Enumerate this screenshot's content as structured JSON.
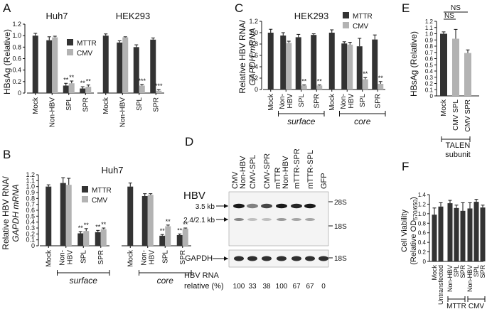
{
  "colors": {
    "mttr": "#333333",
    "cmv": "#b3b3b3",
    "blot_bg": "#f4f4f4",
    "band": "#1a1a1a"
  },
  "chart_data": [
    {
      "panel": "A",
      "type": "bar",
      "ylabel": "HBsAg (Relative)",
      "ylim": [
        0,
        1.2
      ],
      "yticks": [
        0,
        0.2,
        0.4,
        0.6,
        0.8,
        1.0,
        1.2
      ],
      "ytick_labels": [
        "0",
        "0.2",
        "0.4",
        "0.6",
        "0.8",
        "1.0",
        "1.2"
      ],
      "legend": [
        "MTTR",
        "CMV"
      ],
      "groups": [
        {
          "title": "Huh7",
          "categories": [
            "Mock",
            "Non-HBV",
            "SPL",
            "SPR"
          ],
          "values": [
            [
              1.0,
              null
            ],
            [
              0.92,
              0.97
            ],
            [
              0.13,
              0.17
            ],
            [
              0.08,
              0.11
            ]
          ],
          "errors": [
            [
              0.04,
              null
            ],
            [
              0.06,
              0.02
            ],
            [
              0.04,
              0.04
            ],
            [
              0.03,
              0.03
            ]
          ],
          "sig": [
            [
              "",
              ""
            ],
            [
              "",
              ""
            ],
            [
              "**",
              "**"
            ],
            [
              "**",
              "**"
            ]
          ]
        },
        {
          "title": "HEK293",
          "categories": [
            "Mock",
            "Non-HBV",
            "SPL",
            "SPR"
          ],
          "values": [
            [
              1.0,
              null
            ],
            [
              0.88,
              0.97
            ],
            [
              0.8,
              0.13
            ],
            [
              0.93,
              0.04
            ]
          ],
          "errors": [
            [
              0.03,
              null
            ],
            [
              0.03,
              0.01
            ],
            [
              0.04,
              0.02
            ],
            [
              0.03,
              0.02
            ]
          ],
          "sig": [
            [
              "",
              ""
            ],
            [
              "",
              ""
            ],
            [
              "",
              "***"
            ],
            [
              "",
              "***"
            ]
          ]
        }
      ]
    },
    {
      "panel": "B",
      "type": "bar",
      "ylabel_lines": [
        "Relative HBV RNA/",
        "GAPDH mRNA"
      ],
      "title": "Huh7",
      "ylim": [
        0,
        1.2
      ],
      "yticks": [
        0,
        0.1,
        0.2,
        0.3,
        0.4,
        0.5,
        0.6,
        0.7,
        0.8,
        0.9,
        1.0,
        1.1,
        1.2
      ],
      "ytick_labels": [
        "0",
        "0.1",
        "0.2",
        "0.3",
        "0.4",
        "0.5",
        "0.6",
        "0.7",
        "0.8",
        "0.9",
        "1.0",
        "1.1",
        "1.2"
      ],
      "legend": [
        "MTTR",
        "CMV"
      ],
      "groups": [
        {
          "label": "surface",
          "categories": [
            "Mock",
            "Non-HBV",
            "SPL",
            "SPR"
          ],
          "category_lines": [
            [
              "Mock"
            ],
            [
              "Non-",
              "HBV"
            ],
            [
              "SPL"
            ],
            [
              "SPR"
            ]
          ],
          "values": [
            [
              1.0,
              null
            ],
            [
              1.06,
              1.03
            ],
            [
              0.21,
              0.25
            ],
            [
              0.23,
              0.28
            ]
          ],
          "errors": [
            [
              0.03,
              null
            ],
            [
              0.09,
              0.11
            ],
            [
              0.03,
              0.04
            ],
            [
              0.03,
              0.02
            ]
          ],
          "sig": [
            [
              "",
              ""
            ],
            [
              "",
              ""
            ],
            [
              "**",
              "**"
            ],
            [
              "**",
              "**"
            ]
          ]
        },
        {
          "label": "core",
          "categories": [
            "Mock",
            "Non-HBV",
            "SPL",
            "SPR"
          ],
          "category_lines": [
            [
              "Mock"
            ],
            [
              "Non-",
              "HBV"
            ],
            [
              "SPL"
            ],
            [
              "SPR"
            ]
          ],
          "values": [
            [
              1.0,
              null
            ],
            [
              0.84,
              0.86
            ],
            [
              0.17,
              0.33
            ],
            [
              0.18,
              0.29
            ]
          ],
          "errors": [
            [
              0.06,
              null
            ],
            [
              0.04,
              0.02
            ],
            [
              0.02,
              0.02
            ],
            [
              0.02,
              0.01
            ]
          ],
          "sig": [
            [
              "",
              ""
            ],
            [
              "",
              ""
            ],
            [
              "**",
              "**"
            ],
            [
              "**",
              "**"
            ]
          ]
        }
      ]
    },
    {
      "panel": "C",
      "type": "bar",
      "ylabel_lines": [
        "Relative HBV RNA/",
        "GAPDH mRNA"
      ],
      "title": "HEK293",
      "ylim": [
        0,
        1.2
      ],
      "yticks": [
        0,
        0.2,
        0.4,
        0.6,
        0.8,
        1.0,
        1.2
      ],
      "ytick_labels": [
        "0",
        "0.2",
        "0.4",
        "0.6",
        "0.8",
        "1.0",
        "1.2"
      ],
      "legend": [
        "MTTR",
        "CMV"
      ],
      "groups": [
        {
          "label": "surface",
          "categories": [
            "Mock",
            "Non-HBV",
            "SPL",
            "SPR"
          ],
          "category_lines": [
            [
              "Mock"
            ],
            [
              "Non-",
              "HBV"
            ],
            [
              "SPL"
            ],
            [
              "SPR"
            ]
          ],
          "values": [
            [
              1.0,
              null
            ],
            [
              0.95,
              0.82
            ],
            [
              0.92,
              0.07
            ],
            [
              0.96,
              0.07
            ]
          ],
          "errors": [
            [
              0.06,
              null
            ],
            [
              0.05,
              0.03
            ],
            [
              0.05,
              0.01
            ],
            [
              0.02,
              0.01
            ]
          ],
          "sig": [
            [
              "",
              ""
            ],
            [
              "",
              ""
            ],
            [
              "",
              "**"
            ],
            [
              "",
              "**"
            ]
          ]
        },
        {
          "label": "core",
          "categories": [
            "Mock",
            "Non-HBV",
            "SPL",
            "SPR"
          ],
          "category_lines": [
            [
              "Mock"
            ],
            [
              "Non-",
              "HBV"
            ],
            [
              "SPL"
            ],
            [
              "SPR"
            ]
          ],
          "values": [
            [
              1.0,
              null
            ],
            [
              0.81,
              0.79
            ],
            [
              0.76,
              0.18
            ],
            [
              0.88,
              0.1
            ]
          ],
          "errors": [
            [
              0.05,
              null
            ],
            [
              0.03,
              0.04
            ],
            [
              0.14,
              0.03
            ],
            [
              0.08,
              0.04
            ]
          ],
          "sig": [
            [
              "",
              ""
            ],
            [
              "",
              ""
            ],
            [
              "",
              "**"
            ],
            [
              "",
              "**"
            ]
          ]
        }
      ]
    },
    {
      "panel": "E",
      "type": "bar",
      "ylabel": "HBsAg (Relative)",
      "ylim": [
        0,
        1.2
      ],
      "yticks": [
        0,
        0.1,
        0.2,
        0.3,
        0.4,
        0.5,
        0.6,
        0.7,
        0.8,
        0.9,
        1.0,
        1.1,
        1.2
      ],
      "ytick_labels": [
        "0",
        "0.1",
        "0.2",
        "0.3",
        "0.4",
        "0.5",
        "0.6",
        "0.7",
        "0.8",
        "0.9",
        "1.0",
        "1.1",
        "1.2"
      ],
      "categories": [
        "Mock",
        "CMV SPL",
        "CMV SPR"
      ],
      "values": [
        1.0,
        0.92,
        0.69
      ],
      "errors": [
        0.03,
        0.15,
        0.05
      ],
      "bar_colors": [
        "mttr",
        "cmv",
        "cmv"
      ],
      "comparisons": [
        {
          "from": 0,
          "to": 1,
          "label": "NS"
        },
        {
          "from": 0,
          "to": 2,
          "label": "NS"
        }
      ],
      "group_label_lines": [
        "TALEN",
        "subunit"
      ]
    },
    {
      "panel": "F",
      "type": "bar",
      "ylabel": "Cell Viability",
      "ylabel2_prefix": "(Relative OD",
      "ylabel2_sub": "570/650",
      "ylabel2_suffix": ")",
      "ylim": [
        0,
        1.4
      ],
      "yticks": [
        0,
        0.2,
        0.4,
        0.6,
        0.8,
        1.0,
        1.2,
        1.4
      ],
      "ytick_labels": [
        "0",
        "0.2",
        "0.4",
        "0.6",
        "0.8",
        "1.0",
        "1.2",
        "1.4"
      ],
      "categories": [
        "Mock",
        "Untransfected",
        "Non-HBV",
        "SPL",
        "SPR",
        "Non-HBV",
        "SPL",
        "SPR"
      ],
      "values": [
        0.98,
        1.15,
        1.22,
        1.12,
        1.06,
        1.11,
        1.25,
        1.13
      ],
      "errors": [
        0.14,
        0.08,
        0.06,
        0.06,
        0.17,
        0.12,
        0.05,
        0.05
      ],
      "brackets": [
        {
          "label": "MTTR",
          "from": 2,
          "to": 4
        },
        {
          "label": "CMV",
          "from": 5,
          "to": 7
        }
      ]
    }
  ],
  "blot": {
    "panel": "D",
    "title": "HBV",
    "lanes": [
      "CMV Non-HBV",
      "CMV-SPL",
      "CMV-SPR",
      "mTTR Non-HBV",
      "mTTR-SPR",
      "mTTR-SPL",
      "GFP"
    ],
    "lane_label_lines": [
      [
        "CMV",
        "Non-HBV"
      ],
      [
        "CMV-SPL"
      ],
      [
        "CMV-SPR"
      ],
      [
        "mTTR",
        "Non-HBV"
      ],
      [
        "mTTR-SPR"
      ],
      [
        "mTTR-SPL"
      ],
      [
        "GFP"
      ]
    ],
    "left_markers": [
      "3.5 kb",
      "2.4/2.1 kb"
    ],
    "right_markers": [
      "28S",
      "18S"
    ],
    "gapdh_label": "GAPDH",
    "gapdh_marker": "18S",
    "quant_label_lines": [
      "HBV RNA",
      "relative (%)"
    ],
    "quant_values": [
      "100",
      "33",
      "38",
      "100",
      "67",
      "67",
      "0"
    ],
    "band_intensity_35kb": [
      1.0,
      0.28,
      0.55,
      0.95,
      0.7,
      0.85,
      0
    ],
    "band_intensity_24kb": [
      0.6,
      0.15,
      0.15,
      0.45,
      0.35,
      0.35,
      0
    ]
  }
}
